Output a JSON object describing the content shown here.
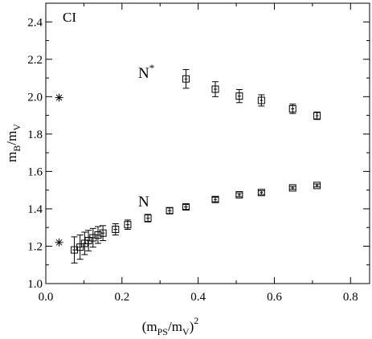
{
  "chart_data": {
    "type": "scatter",
    "panel_label": "CI",
    "xlabel": {
      "main": "(m",
      "sub1": "PS",
      "mid": "/m",
      "sub2": "V",
      "close": ")",
      "sup": "2"
    },
    "ylabel": {
      "main": "m",
      "sub1": "B",
      "mid": "/m",
      "sub2": "V"
    },
    "xlim": [
      0.0,
      0.85
    ],
    "ylim": [
      1.0,
      2.5
    ],
    "xticks": [
      0.0,
      0.2,
      0.4,
      0.6,
      0.8
    ],
    "xtick_labels": [
      "0.0",
      "0.2",
      "0.4",
      "0.6",
      "0.8"
    ],
    "yticks": [
      1.0,
      1.2,
      1.4,
      1.6,
      1.8,
      2.0,
      2.2,
      2.4
    ],
    "ytick_labels": [
      "1.0",
      "1.2",
      "1.4",
      "1.6",
      "1.8",
      "2.0",
      "2.2",
      "2.4"
    ],
    "grid": false,
    "series": [
      {
        "name": "N*",
        "label_main": "N",
        "label_sup": "*",
        "marker": "square",
        "x": [
          0.368,
          0.445,
          0.508,
          0.566,
          0.648,
          0.712
        ],
        "y": [
          2.095,
          2.04,
          2.003,
          1.98,
          1.935,
          1.898
        ],
        "yerr": [
          0.05,
          0.04,
          0.035,
          0.03,
          0.025,
          0.02
        ],
        "xerr": [
          0.004,
          0.004,
          0.004,
          0.004,
          0.004,
          0.004
        ]
      },
      {
        "name": "N",
        "label_main": "N",
        "marker": "square",
        "x": [
          0.075,
          0.09,
          0.102,
          0.112,
          0.124,
          0.137,
          0.15,
          0.183,
          0.215,
          0.268,
          0.325,
          0.368,
          0.445,
          0.508,
          0.566,
          0.648,
          0.712
        ],
        "y": [
          1.18,
          1.195,
          1.215,
          1.23,
          1.245,
          1.26,
          1.27,
          1.29,
          1.315,
          1.35,
          1.39,
          1.41,
          1.45,
          1.475,
          1.487,
          1.512,
          1.525
        ],
        "yerr": [
          0.07,
          0.065,
          0.06,
          0.055,
          0.05,
          0.045,
          0.04,
          0.03,
          0.025,
          0.02,
          0.015,
          0.013,
          0.012,
          0.01,
          0.01,
          0.008,
          0.008
        ],
        "xerr": [
          0.005,
          0.005,
          0.005,
          0.005,
          0.005,
          0.005,
          0.005,
          0.005,
          0.005,
          0.005,
          0.005,
          0.005,
          0.004,
          0.004,
          0.004,
          0.004,
          0.004
        ]
      },
      {
        "name": "N* chiral limit",
        "marker": "asterisk",
        "x": [
          0.035
        ],
        "y": [
          1.995
        ]
      },
      {
        "name": "N chiral limit",
        "marker": "asterisk",
        "x": [
          0.035
        ],
        "y": [
          1.22
        ]
      }
    ]
  }
}
